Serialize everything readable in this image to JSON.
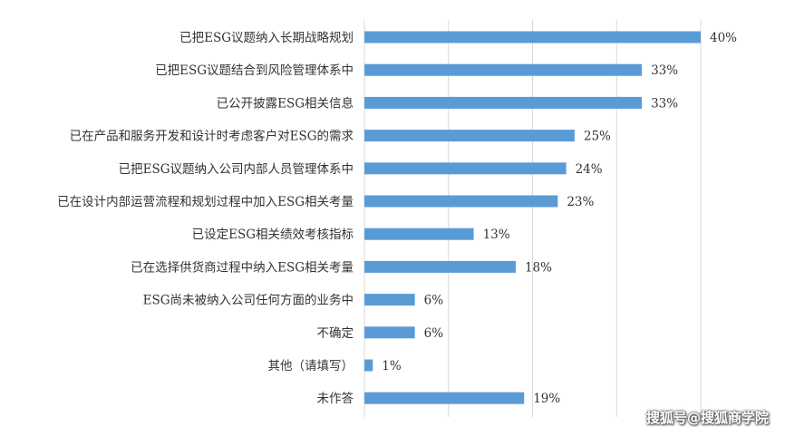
{
  "chart_data": {
    "type": "bar",
    "orientation": "horizontal",
    "categories": [
      "已把ESG议题纳入长期战略规划",
      "已把ESG议题结合到风险管理体系中",
      "已公开披露ESG相关信息",
      "已在产品和服务开发和设计时考虑客户对ESG的需求",
      "已把ESG议题纳入公司内部人员管理体系中",
      "已在设计内部运营流程和规划过程中加入ESG相关考量",
      "已设定ESG相关绩效考核指标",
      "已在选择供货商过程中纳入ESG相关考量",
      "ESG尚未被纳入公司任何方面的业务中",
      "不确定",
      "其他（请填写）",
      "未作答"
    ],
    "values": [
      40,
      33,
      33,
      25,
      24,
      23,
      13,
      18,
      6,
      6,
      1,
      19
    ],
    "value_labels": [
      "40%",
      "33%",
      "33%",
      "25%",
      "24%",
      "23%",
      "13%",
      "18%",
      "6%",
      "6%",
      "1%",
      "19%"
    ],
    "xlim": [
      0,
      40
    ],
    "grid": "vertical",
    "bar_color": "#5b9bd5",
    "grid_color": "#d9d9d9"
  },
  "watermark": "搜狐号@搜狐商学院"
}
